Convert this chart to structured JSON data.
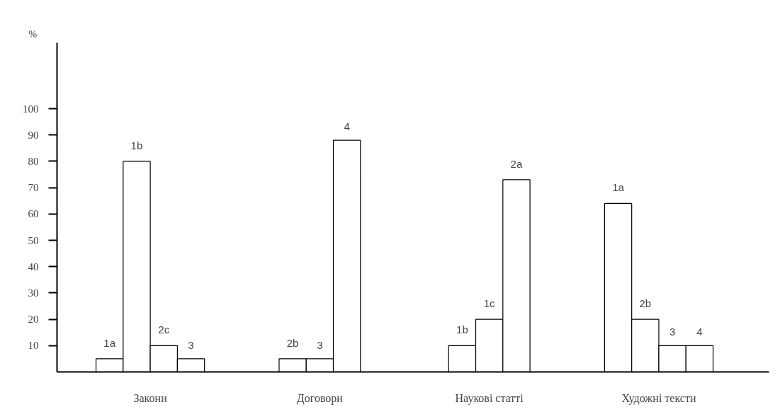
{
  "chart_data": {
    "type": "bar",
    "ylabel": "%",
    "categories": [
      "Закони",
      "Договори",
      "Наукові статті",
      "Художні тексти"
    ],
    "series": [
      {
        "name": "1a",
        "color": "#ffffff",
        "values": [
          5,
          null,
          null,
          64
        ]
      },
      {
        "name": "1b",
        "color": "#ffffff",
        "values": [
          80,
          null,
          10,
          null
        ]
      },
      {
        "name": "1c",
        "color": "#ffffff",
        "values": [
          null,
          null,
          20,
          null
        ]
      },
      {
        "name": "2a",
        "color": "#ffffff",
        "values": [
          null,
          null,
          73,
          null
        ]
      },
      {
        "name": "2b",
        "color": "#ffffff",
        "values": [
          null,
          5,
          null,
          20
        ]
      },
      {
        "name": "2c",
        "color": "#ffffff",
        "values": [
          10,
          null,
          null,
          null
        ]
      },
      {
        "name": "3",
        "color": "#ffffff",
        "values": [
          5,
          5,
          null,
          10
        ]
      },
      {
        "name": "4",
        "color": "#ffffff",
        "values": [
          null,
          88,
          null,
          10
        ]
      }
    ],
    "ylim": [
      0,
      125
    ],
    "yticks": [
      10,
      20,
      30,
      40,
      50,
      60,
      70,
      80,
      90,
      100
    ],
    "grid": false
  }
}
